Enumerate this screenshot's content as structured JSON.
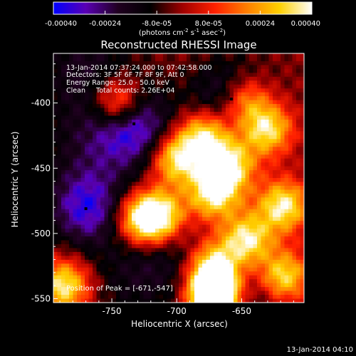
{
  "colorbar": {
    "ticks": [
      "-0.00040",
      "-0.00024",
      "-8.0e-05",
      "8.0e-05",
      "0.00024",
      "0.00040"
    ],
    "units_main": "(photons cm",
    "units_sup1": "-2",
    "units_mid": " s",
    "units_sup2": "-1",
    "units_end": " asec",
    "units_sup3": "-2",
    "units_close": ")"
  },
  "chart_data": {
    "type": "heatmap",
    "title": "Reconstructed RHESSI Image",
    "xlabel": "Heliocentric X (arcsec)",
    "ylabel": "Heliocentric Y (arcsec)",
    "x_ticks": [
      -750,
      -700,
      -650
    ],
    "y_ticks": [
      -400,
      -450,
      -500,
      -550
    ],
    "xlim": [
      -795,
      -602
    ],
    "ylim": [
      -553,
      -362
    ],
    "color_range": [
      -0.0004,
      0.0004
    ],
    "colormap": [
      "#0000ff",
      "#5a00b4",
      "#200020",
      "#000000",
      "#a00000",
      "#ff2000",
      "#ff8000",
      "#ffd000",
      "#ffffff"
    ],
    "annotations": [
      "13-Jan-2014 07:37:24.000 to 07:42:58.000",
      "Detectors: 3F 5F 6F 7F 8F 9F, Att 0",
      "Energy Range: 25.0 - 50.0 keV",
      "Clean     Total counts: 2.26E+04"
    ],
    "peak_text": "Position of Peak = [-671,-547]",
    "peak": [
      -671,
      -547
    ],
    "minima": [
      [
        -770,
        -481
      ],
      [
        -733,
        -416
      ],
      [
        -658,
        -397
      ]
    ],
    "maxima": [
      [
        -648,
        -398
      ],
      [
        -631,
        -420
      ],
      [
        -678,
        -425
      ],
      [
        -660,
        -448
      ],
      [
        -700,
        -443
      ],
      [
        -745,
        -400
      ],
      [
        -672,
        -470
      ],
      [
        -727,
        -489
      ],
      [
        -713,
        -487
      ],
      [
        -672,
        -525
      ],
      [
        -646,
        -505
      ],
      [
        -671,
        -547
      ],
      [
        -787,
        -540
      ],
      [
        -618,
        -533
      ],
      [
        -618,
        -479
      ]
    ]
  },
  "footer": {
    "date": "13-Jan-2014 04:10"
  }
}
